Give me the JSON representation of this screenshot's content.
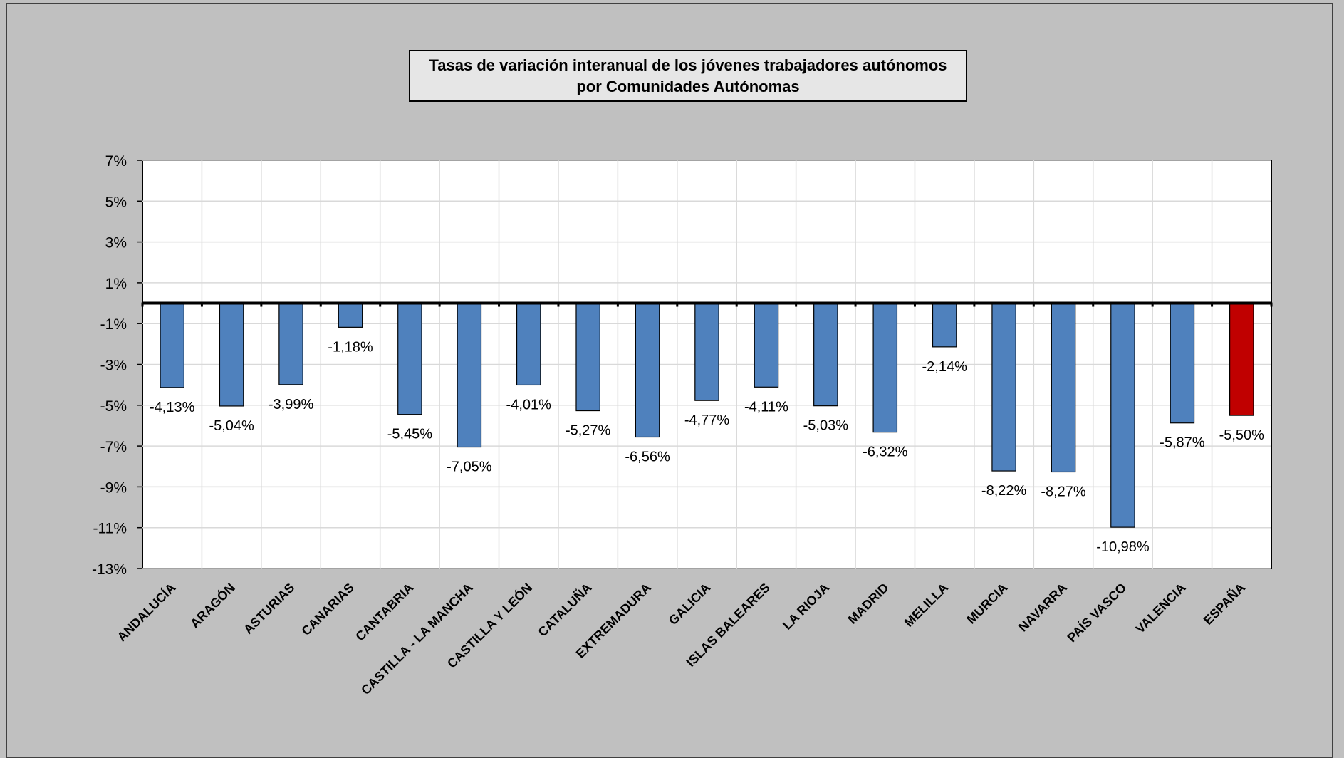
{
  "chart_data": {
    "type": "bar",
    "title_lines": [
      "Tasas de variación interanual de los jóvenes trabajadores autónomos",
      "por Comunidades Autónomas"
    ],
    "categories": [
      "ANDALUCÍA",
      "ARAGÓN",
      "ASTURIAS",
      "CANARIAS",
      "CANTABRIA",
      "CASTILLA - LA MANCHA",
      "CASTILLA Y LEÓN",
      "CATALUÑA",
      "EXTREMADURA",
      "GALICIA",
      "ISLAS BALEARES",
      "LA RIOJA",
      "MADRID",
      "MELILLA",
      "MURCIA",
      "NAVARRA",
      "PAÍS VASCO",
      "VALENCIA",
      "ESPAÑA"
    ],
    "values": [
      -4.13,
      -5.04,
      -3.99,
      -1.18,
      -5.45,
      -7.05,
      -4.01,
      -5.27,
      -6.56,
      -4.77,
      -4.11,
      -5.03,
      -6.32,
      -2.14,
      -8.22,
      -8.27,
      -10.98,
      -5.87,
      -5.5
    ],
    "data_labels": [
      "-4,13%",
      "-5,04%",
      "-3,99%",
      "-1,18%",
      "-5,45%",
      "-7,05%",
      "-4,01%",
      "-5,27%",
      "-6,56%",
      "-4,77%",
      "-4,11%",
      "-5,03%",
      "-6,32%",
      "-2,14%",
      "-8,22%",
      "-8,27%",
      "-10,98%",
      "-5,87%",
      "-5,50%"
    ],
    "ylim": [
      -13,
      7
    ],
    "yticks": [
      7,
      5,
      3,
      1,
      -1,
      -3,
      -5,
      -7,
      -9,
      -11,
      -13
    ],
    "ytick_labels": [
      "7%",
      "5%",
      "3%",
      "1%",
      "-1%",
      "-3%",
      "-5%",
      "-7%",
      "-9%",
      "-11%",
      "-13%"
    ],
    "grid": true,
    "colors": {
      "bar": "#4f81bd",
      "highlight": "#c00000",
      "background": "#c0c0c0",
      "plot": "#ffffff"
    },
    "highlight_category": "ESPAÑA"
  }
}
